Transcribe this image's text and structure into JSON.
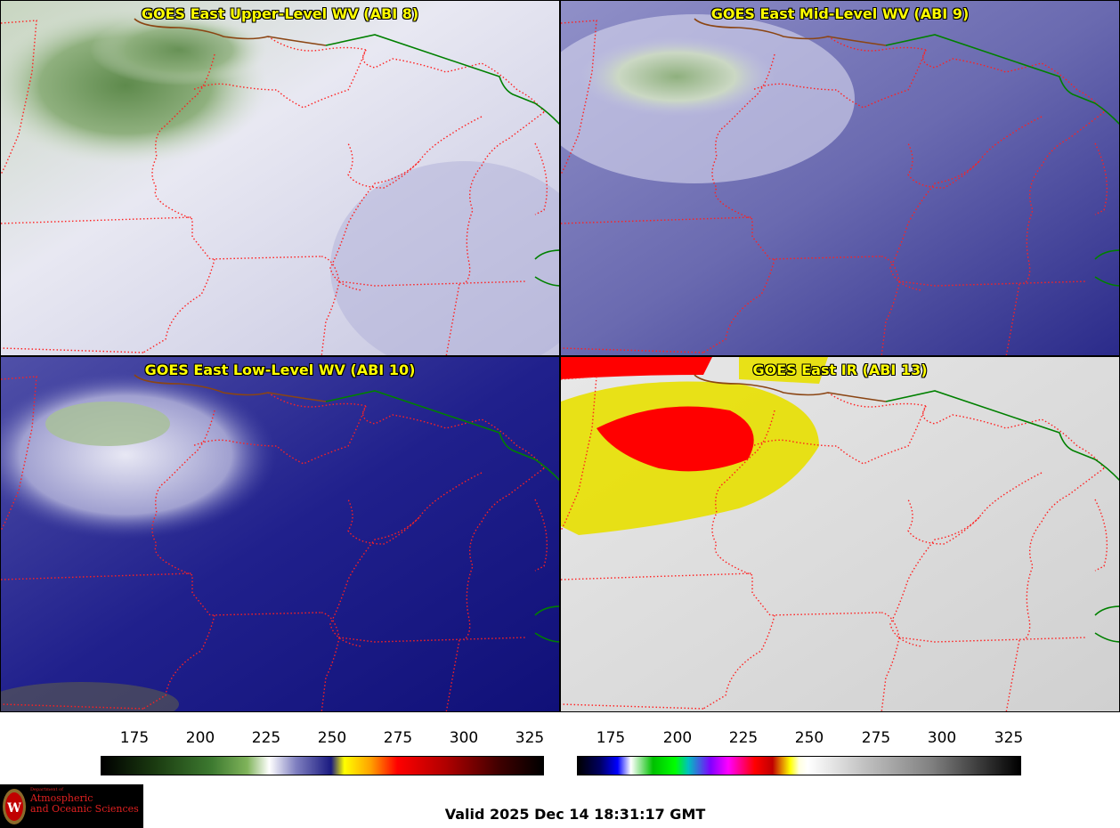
{
  "panels": {
    "upper_level_wv": {
      "title": "GOES East Upper-Level WV (ABI 8)"
    },
    "mid_level_wv": {
      "title": "GOES East Mid-Level WV (ABI 9)"
    },
    "low_level_wv": {
      "title": "GOES East Low-Level WV (ABI 10)"
    },
    "ir": {
      "title": "GOES East IR (ABI 13)"
    }
  },
  "colorbars": {
    "wv": {
      "ticks": [
        "175",
        "200",
        "225",
        "250",
        "275",
        "300",
        "325"
      ]
    },
    "ir": {
      "ticks": [
        "175",
        "200",
        "225",
        "250",
        "275",
        "300",
        "325"
      ]
    }
  },
  "logo": {
    "small_text": "Department of",
    "line1": "Atmospheric",
    "line2": "and Oceanic Sciences"
  },
  "footer": {
    "valid": "Valid 2025 Dec 14 18:31:17 GMT"
  },
  "colors": {
    "title_text": "#ffff00",
    "state_border": "#ff2020",
    "international_border": "#008000",
    "lake_border": "#8b4513"
  }
}
